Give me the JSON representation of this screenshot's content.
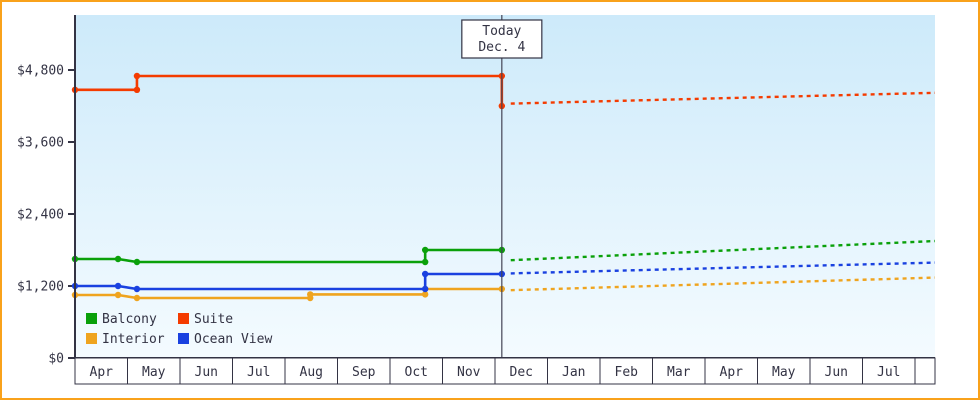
{
  "chart_data": {
    "type": "line",
    "title": "",
    "xlabel": "",
    "ylabel": "",
    "y_unit": "USD",
    "grid": false,
    "x_axis": {
      "months": [
        "Apr",
        "May",
        "Jun",
        "Jul",
        "Aug",
        "Sep",
        "Oct",
        "Nov",
        "Dec",
        "Jan",
        "Feb",
        "Mar",
        "Apr",
        "May",
        "Jun",
        "Jul"
      ]
    },
    "y_axis": {
      "ticks": [
        0,
        1200,
        2400,
        3600,
        4800
      ],
      "tick_labels": [
        "$0",
        "$1,200",
        "$2,400",
        "$3,600",
        "$4,800"
      ],
      "ylim": [
        0,
        5700
      ]
    },
    "today": {
      "label": "Today",
      "date": "Dec. 4",
      "month_index": 8.13
    },
    "series": [
      {
        "name": "Balcony",
        "color": "#0aa00a",
        "historical": [
          [
            0,
            1650
          ],
          [
            0.82,
            1650
          ],
          [
            1.18,
            1600
          ],
          [
            6.67,
            1600
          ],
          [
            6.67,
            1800
          ],
          [
            8.13,
            1800
          ]
        ],
        "forecast": [
          [
            8.3,
            1630
          ],
          [
            16.38,
            1950
          ]
        ]
      },
      {
        "name": "Suite",
        "color": "#f43b00",
        "historical": [
          [
            0,
            4470
          ],
          [
            1.18,
            4470
          ],
          [
            1.18,
            4700
          ],
          [
            8.13,
            4700
          ],
          [
            8.13,
            4200
          ]
        ],
        "forecast": [
          [
            8.3,
            4240
          ],
          [
            16.38,
            4420
          ]
        ]
      },
      {
        "name": "Interior",
        "color": "#efa41f",
        "historical": [
          [
            0,
            1050
          ],
          [
            0.82,
            1050
          ],
          [
            1.18,
            1000
          ],
          [
            4.48,
            1000
          ],
          [
            4.48,
            1060
          ],
          [
            6.67,
            1060
          ],
          [
            6.67,
            1150
          ],
          [
            8.13,
            1150
          ]
        ],
        "forecast": [
          [
            8.3,
            1130
          ],
          [
            16.38,
            1340
          ]
        ]
      },
      {
        "name": "Ocean View",
        "color": "#1a41e0",
        "historical": [
          [
            0,
            1200
          ],
          [
            0.82,
            1200
          ],
          [
            1.18,
            1150
          ],
          [
            6.67,
            1150
          ],
          [
            6.67,
            1400
          ],
          [
            8.13,
            1400
          ]
        ],
        "forecast": [
          [
            8.3,
            1410
          ],
          [
            16.38,
            1590
          ]
        ]
      }
    ],
    "legend": {
      "position": "bottom-left",
      "order": [
        "Balcony",
        "Suite",
        "Interior",
        "Ocean View"
      ]
    },
    "colors": {
      "axis": "#333344",
      "frame_border": "#f9a21b",
      "plot_bg_top": "#cdeafa",
      "plot_bg_bottom": "#f4fbff",
      "today_line": "#444455"
    }
  }
}
